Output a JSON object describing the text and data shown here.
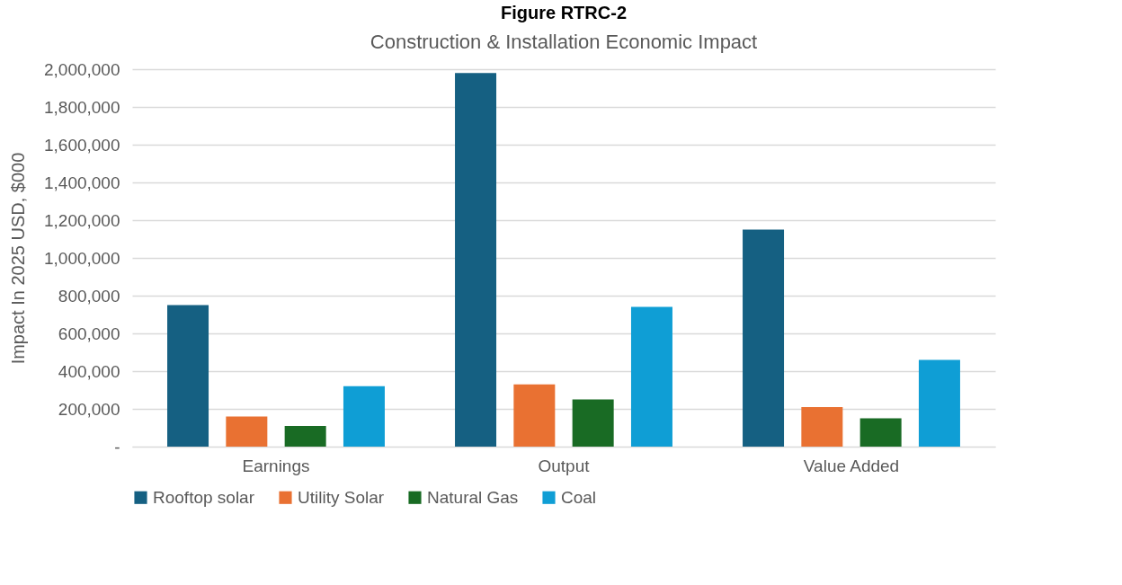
{
  "chart_data": {
    "type": "bar",
    "title": "Figure RTRC-2",
    "subtitle": "Construction & Installation Economic Impact",
    "ylabel": "Impact In 2025 USD, $000",
    "categories": [
      "Earnings",
      "Output",
      "Value Added"
    ],
    "series": [
      {
        "name": "Rooftop solar",
        "color": "#156082",
        "values": [
          750000,
          1980000,
          1150000
        ]
      },
      {
        "name": "Utility Solar",
        "color": "#e97132",
        "values": [
          160000,
          330000,
          210000
        ]
      },
      {
        "name": "Natural Gas",
        "color": "#196b24",
        "values": [
          110000,
          250000,
          150000
        ]
      },
      {
        "name": "Coal",
        "color": "#0f9ed5",
        "values": [
          320000,
          740000,
          460000
        ]
      }
    ],
    "ylim": [
      0,
      2000000
    ],
    "yticks": [
      {
        "value": 0,
        "label": "-"
      },
      {
        "value": 200000,
        "label": "200,000"
      },
      {
        "value": 400000,
        "label": "400,000"
      },
      {
        "value": 600000,
        "label": "600,000"
      },
      {
        "value": 800000,
        "label": "800,000"
      },
      {
        "value": 1000000,
        "label": "1,000,000"
      },
      {
        "value": 1200000,
        "label": "1,200,000"
      },
      {
        "value": 1400000,
        "label": "1,400,000"
      },
      {
        "value": 1600000,
        "label": "1,600,000"
      },
      {
        "value": 1800000,
        "label": "1,800,000"
      },
      {
        "value": 2000000,
        "label": "2,000,000"
      }
    ],
    "grid": "y",
    "legend": "bottom"
  }
}
